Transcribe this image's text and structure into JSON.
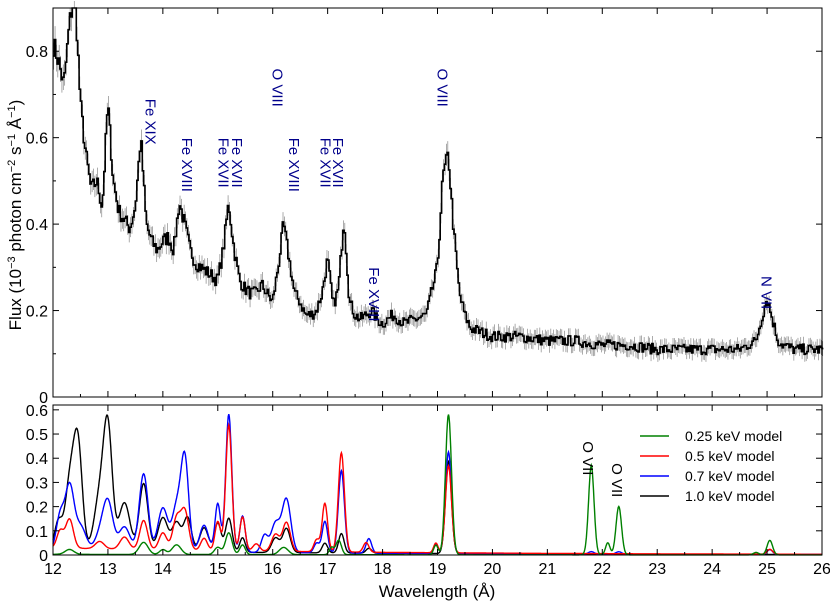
{
  "chart_data": [
    {
      "type": "line",
      "panel": "top",
      "ylabel_prefix": "Flux (10",
      "ylabel_exp1": "−3",
      "ylabel_mid": " photon cm",
      "ylabel_exp2": "−2",
      "ylabel_s": " s",
      "ylabel_exp3": "−1",
      "ylabel_unit": " Å",
      "ylabel_exp4": "−1",
      "ylabel_close": ")",
      "xlim": [
        12,
        26
      ],
      "ylim": [
        0,
        0.9
      ],
      "yticks": [
        "0",
        "0.2",
        "0.4",
        "0.6",
        "0.8"
      ],
      "line_color": "#000000",
      "error_color": "#888888",
      "label_color": "#00008b",
      "series": [
        {
          "x": [
            12.0,
            12.1,
            12.2,
            12.3,
            12.4,
            12.5,
            12.6,
            12.7,
            12.8,
            12.9,
            13.0,
            13.1,
            13.2,
            13.3,
            13.4,
            13.5,
            13.6,
            13.7,
            13.8,
            13.9,
            14.0,
            14.1,
            14.2,
            14.3,
            14.4,
            14.5,
            14.6,
            14.7,
            14.8,
            14.9,
            15.0,
            15.1,
            15.2,
            15.3,
            15.4,
            15.5,
            15.6,
            15.7,
            15.8,
            15.9,
            16.0,
            16.1,
            16.2,
            16.3,
            16.4,
            16.5,
            16.6,
            16.7,
            16.8,
            16.9,
            17.0,
            17.1,
            17.2,
            17.3,
            17.4,
            17.5,
            17.6,
            17.7,
            17.8,
            17.9,
            18.0,
            18.2,
            18.4,
            18.6,
            18.8,
            19.0,
            19.1,
            19.2,
            19.3,
            19.4,
            19.5,
            19.6,
            19.8,
            20.0,
            20.5,
            21.0,
            21.5,
            22.0,
            22.5,
            23.0,
            23.5,
            24.0,
            24.5,
            24.8,
            24.9,
            25.0,
            25.1,
            25.2,
            25.3,
            25.5,
            26.0
          ],
          "y": [
            0.82,
            0.78,
            0.72,
            0.86,
            0.95,
            0.68,
            0.56,
            0.48,
            0.5,
            0.44,
            0.68,
            0.5,
            0.43,
            0.41,
            0.39,
            0.44,
            0.6,
            0.4,
            0.36,
            0.34,
            0.36,
            0.37,
            0.34,
            0.45,
            0.4,
            0.34,
            0.31,
            0.3,
            0.29,
            0.28,
            0.27,
            0.34,
            0.45,
            0.34,
            0.27,
            0.25,
            0.24,
            0.24,
            0.26,
            0.24,
            0.22,
            0.3,
            0.4,
            0.32,
            0.24,
            0.22,
            0.19,
            0.19,
            0.2,
            0.24,
            0.32,
            0.21,
            0.25,
            0.42,
            0.22,
            0.19,
            0.18,
            0.19,
            0.2,
            0.18,
            0.17,
            0.19,
            0.17,
            0.18,
            0.19,
            0.3,
            0.51,
            0.56,
            0.38,
            0.24,
            0.19,
            0.16,
            0.15,
            0.14,
            0.14,
            0.13,
            0.13,
            0.12,
            0.12,
            0.11,
            0.11,
            0.11,
            0.11,
            0.13,
            0.18,
            0.23,
            0.18,
            0.13,
            0.12,
            0.11,
            0.11
          ]
        }
      ],
      "annotations": [
        {
          "text": "Fe XIX",
          "x": 13.68,
          "y": 0.69
        },
        {
          "text": "Fe XVIII",
          "x": 14.35,
          "y": 0.6
        },
        {
          "text": "Fe XVII",
          "x": 15.01,
          "y": 0.6
        },
        {
          "text": "Fe XVII",
          "x": 15.26,
          "y": 0.6
        },
        {
          "text": "O VIII",
          "x": 16.0,
          "y": 0.76
        },
        {
          "text": "Fe XVIII",
          "x": 16.3,
          "y": 0.6
        },
        {
          "text": "Fe XVII",
          "x": 16.87,
          "y": 0.6
        },
        {
          "text": "Fe XVII",
          "x": 17.1,
          "y": 0.6
        },
        {
          "text": "O VIII",
          "x": 19.0,
          "y": 0.76
        },
        {
          "text": "Fe XVIII",
          "x": 17.75,
          "y": 0.3
        },
        {
          "text": "N VII",
          "x": 24.9,
          "y": 0.28
        }
      ]
    },
    {
      "type": "line",
      "panel": "bottom",
      "xlabel": "Wavelength (Å)",
      "xlim": [
        12,
        26
      ],
      "ylim": [
        0,
        0.62
      ],
      "xticks": [
        "12",
        "13",
        "14",
        "15",
        "16",
        "17",
        "18",
        "19",
        "20",
        "21",
        "22",
        "23",
        "24",
        "25",
        "26"
      ],
      "yticks": [
        "0",
        "0.1",
        "0.2",
        "0.3",
        "0.4",
        "0.5",
        "0.6"
      ],
      "legend_position": "top-right",
      "annotations": [
        {
          "text": "O VII",
          "x": 21.65,
          "y": 0.47
        },
        {
          "text": "O VII",
          "x": 22.18,
          "y": 0.38
        }
      ],
      "series": [
        {
          "name": "0.25 keV model",
          "color": "#008000",
          "peaks": [
            [
              12.3,
              0.02,
              0.08
            ],
            [
              13.65,
              0.05,
              0.08
            ],
            [
              14.0,
              0.02,
              0.06
            ],
            [
              14.25,
              0.04,
              0.08
            ],
            [
              15.0,
              0.03,
              0.06
            ],
            [
              15.2,
              0.09,
              0.06
            ],
            [
              15.45,
              0.04,
              0.05
            ],
            [
              16.2,
              0.03,
              0.08
            ],
            [
              17.07,
              0.03,
              0.04
            ],
            [
              17.2,
              0.06,
              0.05
            ],
            [
              18.97,
              0.04,
              0.04
            ],
            [
              19.2,
              0.58,
              0.055
            ],
            [
              21.8,
              0.37,
              0.05
            ],
            [
              22.1,
              0.05,
              0.04
            ],
            [
              22.3,
              0.2,
              0.05
            ],
            [
              24.8,
              0.01,
              0.05
            ],
            [
              25.05,
              0.06,
              0.05
            ]
          ],
          "baseline": 0.003
        },
        {
          "name": "0.5 keV model",
          "color": "#ff0000",
          "peaks": [
            [
              12.13,
              0.07,
              0.06
            ],
            [
              12.3,
              0.12,
              0.07
            ],
            [
              12.85,
              0.03,
              0.08
            ],
            [
              13.3,
              0.05,
              0.08
            ],
            [
              13.65,
              0.12,
              0.07
            ],
            [
              14.0,
              0.07,
              0.07
            ],
            [
              14.25,
              0.13,
              0.07
            ],
            [
              14.4,
              0.16,
              0.07
            ],
            [
              14.75,
              0.05,
              0.06
            ],
            [
              15.0,
              0.12,
              0.05
            ],
            [
              15.2,
              0.52,
              0.055
            ],
            [
              15.45,
              0.14,
              0.05
            ],
            [
              15.7,
              0.03,
              0.06
            ],
            [
              16.05,
              0.07,
              0.07
            ],
            [
              16.25,
              0.12,
              0.07
            ],
            [
              16.8,
              0.05,
              0.05
            ],
            [
              16.95,
              0.2,
              0.05
            ],
            [
              17.25,
              0.41,
              0.055
            ],
            [
              17.7,
              0.04,
              0.05
            ],
            [
              18.97,
              0.04,
              0.04
            ],
            [
              19.2,
              0.36,
              0.055
            ],
            [
              25.05,
              0.02,
              0.05
            ]
          ],
          "baseline": 0.03
        },
        {
          "name": "0.7 keV model",
          "color": "#0000ff",
          "peaks": [
            [
              12.13,
              0.14,
              0.07
            ],
            [
              12.3,
              0.26,
              0.08
            ],
            [
              12.5,
              0.1,
              0.1
            ],
            [
              12.85,
              0.06,
              0.09
            ],
            [
              13.0,
              0.2,
              0.09
            ],
            [
              13.3,
              0.1,
              0.1
            ],
            [
              13.65,
              0.32,
              0.08
            ],
            [
              14.0,
              0.18,
              0.09
            ],
            [
              14.25,
              0.18,
              0.08
            ],
            [
              14.4,
              0.38,
              0.07
            ],
            [
              14.75,
              0.11,
              0.08
            ],
            [
              15.0,
              0.2,
              0.05
            ],
            [
              15.2,
              0.57,
              0.055
            ],
            [
              15.45,
              0.15,
              0.05
            ],
            [
              15.85,
              0.07,
              0.06
            ],
            [
              16.05,
              0.12,
              0.08
            ],
            [
              16.25,
              0.22,
              0.08
            ],
            [
              16.8,
              0.04,
              0.05
            ],
            [
              16.95,
              0.13,
              0.05
            ],
            [
              17.25,
              0.34,
              0.055
            ],
            [
              17.75,
              0.06,
              0.05
            ],
            [
              18.97,
              0.04,
              0.04
            ],
            [
              19.2,
              0.42,
              0.055
            ],
            [
              21.8,
              0.01,
              0.05
            ],
            [
              22.3,
              0.01,
              0.05
            ],
            [
              25.05,
              0.02,
              0.05
            ]
          ],
          "baseline": 0.02
        },
        {
          "name": "1.0 keV model",
          "color": "#000000",
          "peaks": [
            [
              12.1,
              0.12,
              0.07
            ],
            [
              12.3,
              0.26,
              0.08
            ],
            [
              12.45,
              0.45,
              0.08
            ],
            [
              12.85,
              0.22,
              0.1
            ],
            [
              13.0,
              0.48,
              0.08
            ],
            [
              13.3,
              0.2,
              0.1
            ],
            [
              13.65,
              0.28,
              0.08
            ],
            [
              14.0,
              0.14,
              0.09
            ],
            [
              14.25,
              0.12,
              0.08
            ],
            [
              14.45,
              0.14,
              0.07
            ],
            [
              14.75,
              0.1,
              0.08
            ],
            [
              15.0,
              0.12,
              0.06
            ],
            [
              15.2,
              0.14,
              0.06
            ],
            [
              15.45,
              0.06,
              0.05
            ],
            [
              16.05,
              0.06,
              0.07
            ],
            [
              16.25,
              0.1,
              0.07
            ],
            [
              16.95,
              0.04,
              0.05
            ],
            [
              17.25,
              0.08,
              0.05
            ],
            [
              17.75,
              0.02,
              0.05
            ],
            [
              19.2,
              0.38,
              0.055
            ]
          ],
          "baseline": 0.02
        }
      ]
    }
  ]
}
